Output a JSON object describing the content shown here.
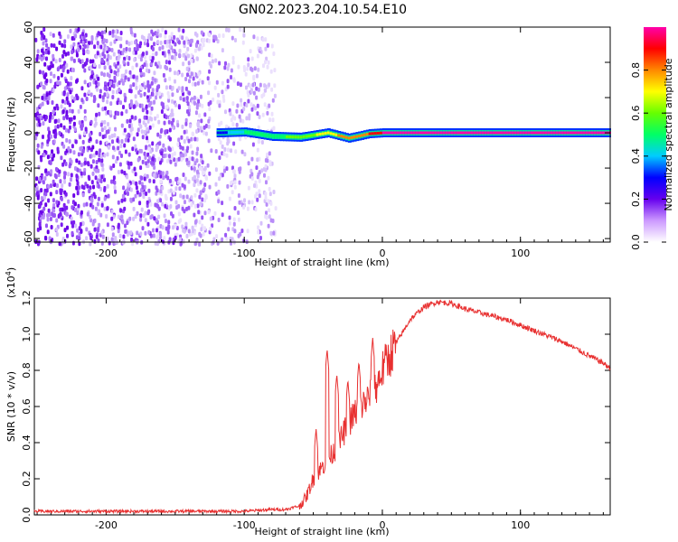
{
  "title": "GN02.2023.204.10.54.E10",
  "chart_data": [
    {
      "type": "heatmap",
      "panel": "spectrogram",
      "xlabel": "Height of straight line (km)",
      "ylabel": "Frequency (Hz)",
      "xlim": [
        -252,
        165
      ],
      "ylim": [
        -62,
        60
      ],
      "x_ticks": [
        "-200",
        "-100",
        "0",
        "100"
      ],
      "y_ticks": [
        "-60",
        "-40",
        "-20",
        "0",
        "20",
        "40",
        "60"
      ],
      "colorbar": {
        "label": "Normalized spectral amplitude",
        "range": [
          0.0,
          1.0
        ],
        "ticks": [
          "0.0",
          "0.2",
          "0.4",
          "0.6",
          "0.8"
        ],
        "colors": [
          "#ffffff",
          "#cc99ff",
          "#6600ee",
          "#0000ff",
          "#00ccff",
          "#00ff66",
          "#66ff00",
          "#ffff00",
          "#ff8800",
          "#ff0000",
          "#ff00aa"
        ]
      },
      "noise_region": {
        "x_range": [
          -252,
          -78
        ],
        "amplitude": 0.1
      },
      "signal": [
        {
          "x": -120,
          "y": 0.0,
          "amplitude": 0.3
        },
        {
          "x": -100,
          "y": 0.5,
          "amplitude": 0.45
        },
        {
          "x": -80,
          "y": -2.0,
          "amplitude": 0.5
        },
        {
          "x": -60,
          "y": -2.5,
          "amplitude": 0.6
        },
        {
          "x": -40,
          "y": 0.0,
          "amplitude": 0.7
        },
        {
          "x": -25,
          "y": -3.0,
          "amplitude": 0.8
        },
        {
          "x": -10,
          "y": -0.5,
          "amplitude": 0.85
        },
        {
          "x": 0,
          "y": 0.0,
          "amplitude": 0.95
        },
        {
          "x": 165,
          "y": 0.0,
          "amplitude": 0.95
        }
      ]
    },
    {
      "type": "line",
      "panel": "snr",
      "xlabel": "Height of straight line (km)",
      "ylabel": "SNR (10 * v/v)",
      "y_multiplier": "(x10",
      "y_exponent": "4",
      "xlim": [
        -252,
        165
      ],
      "ylim": [
        0,
        1.2
      ],
      "x_ticks": [
        "-200",
        "-100",
        "0",
        "100"
      ],
      "y_ticks": [
        "0.0",
        "0.2",
        "0.4",
        "0.6",
        "0.8",
        "1.0",
        "1.2"
      ],
      "series": [
        {
          "color": "#e83030",
          "x": [
            -252,
            -200,
            -150,
            -100,
            -80,
            -70,
            -60,
            -55,
            -50,
            -45,
            -40,
            -35,
            -30,
            -25,
            -20,
            -15,
            -10,
            -5,
            0,
            10,
            20,
            30,
            40,
            50,
            60,
            70,
            80,
            90,
            100,
            110,
            120,
            130,
            140,
            150,
            160,
            165
          ],
          "y": [
            0.02,
            0.02,
            0.02,
            0.02,
            0.03,
            0.03,
            0.05,
            0.1,
            0.2,
            0.25,
            0.3,
            0.35,
            0.42,
            0.5,
            0.56,
            0.6,
            0.65,
            0.7,
            0.8,
            0.95,
            1.08,
            1.15,
            1.18,
            1.17,
            1.14,
            1.12,
            1.1,
            1.08,
            1.05,
            1.02,
            0.99,
            0.96,
            0.92,
            0.88,
            0.84,
            0.81
          ]
        }
      ],
      "spikes": [
        {
          "x": -48,
          "y": 0.48
        },
        {
          "x": -40,
          "y": 0.92
        },
        {
          "x": -33,
          "y": 0.78
        },
        {
          "x": -25,
          "y": 0.75
        },
        {
          "x": -17,
          "y": 0.85
        },
        {
          "x": -7,
          "y": 0.98
        },
        {
          "x": 2,
          "y": 0.9
        }
      ]
    }
  ]
}
